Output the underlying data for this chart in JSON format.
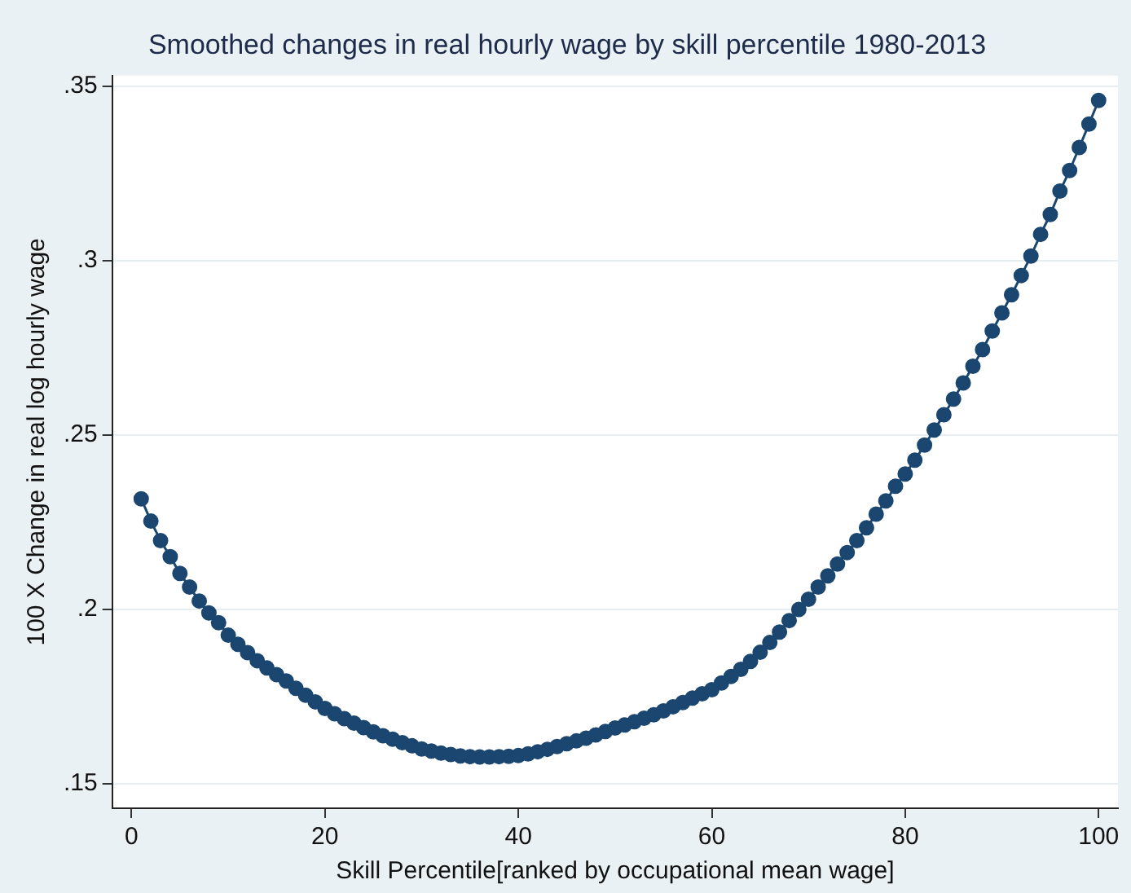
{
  "chart_data": {
    "type": "line",
    "title": "Smoothed changes in real hourly wage by skill percentile 1980-2013",
    "xlabel": "Skill Percentile[ranked by occupational mean wage]",
    "ylabel": "100 X Change in real log hourly wage",
    "x": [
      1,
      2,
      3,
      4,
      5,
      6,
      7,
      8,
      9,
      10,
      11,
      12,
      13,
      14,
      15,
      16,
      17,
      18,
      19,
      20,
      21,
      22,
      23,
      24,
      25,
      26,
      27,
      28,
      29,
      30,
      31,
      32,
      33,
      34,
      35,
      36,
      37,
      38,
      39,
      40,
      41,
      42,
      43,
      44,
      45,
      46,
      47,
      48,
      49,
      50,
      51,
      52,
      53,
      54,
      55,
      56,
      57,
      58,
      59,
      60,
      61,
      62,
      63,
      64,
      65,
      66,
      67,
      68,
      69,
      70,
      71,
      72,
      73,
      74,
      75,
      76,
      77,
      78,
      79,
      80,
      81,
      82,
      83,
      84,
      85,
      86,
      87,
      88,
      89,
      90,
      91,
      92,
      93,
      94,
      95,
      96,
      97,
      98,
      99,
      100
    ],
    "series": [
      {
        "color": "#1a4670",
        "values": [
          0.2317,
          0.2253,
          0.2197,
          0.2151,
          0.2103,
          0.2064,
          0.2024,
          0.199,
          0.1962,
          0.1926,
          0.19,
          0.1876,
          0.1853,
          0.1832,
          0.1813,
          0.1795,
          0.1774,
          0.1754,
          0.1735,
          0.1716,
          0.1701,
          0.1687,
          0.1674,
          0.1661,
          0.1649,
          0.1638,
          0.1628,
          0.1618,
          0.1609,
          0.16,
          0.1594,
          0.1588,
          0.1584,
          0.158,
          0.1578,
          0.1577,
          0.1577,
          0.1578,
          0.1579,
          0.1581,
          0.1586,
          0.1592,
          0.1599,
          0.1607,
          0.1615,
          0.1623,
          0.1631,
          0.164,
          0.165,
          0.166,
          0.1669,
          0.1678,
          0.1688,
          0.1698,
          0.1709,
          0.1721,
          0.1733,
          0.1746,
          0.1758,
          0.177,
          0.1789,
          0.1808,
          0.1828,
          0.1851,
          0.1877,
          0.1905,
          0.1935,
          0.1968,
          0.2,
          0.2029,
          0.2064,
          0.2096,
          0.213,
          0.2163,
          0.2197,
          0.2234,
          0.2273,
          0.2311,
          0.2353,
          0.2388,
          0.2428,
          0.2471,
          0.2514,
          0.2558,
          0.2603,
          0.2649,
          0.2697,
          0.2745,
          0.2798,
          0.285,
          0.2902,
          0.2957,
          0.3013,
          0.3075,
          0.3132,
          0.3199,
          0.3258,
          0.3324,
          0.3391,
          0.3459
        ]
      }
    ],
    "xlim": [
      -2,
      102
    ],
    "xticks": [
      0,
      20,
      40,
      60,
      80,
      100
    ],
    "ylim": [
      0.143,
      0.353
    ],
    "yticks": [
      {
        "value": 0.15,
        "label": ".15"
      },
      {
        "value": 0.2,
        "label": ".2"
      },
      {
        "value": 0.25,
        "label": ".25"
      },
      {
        "value": 0.3,
        "label": ".3"
      },
      {
        "value": 0.35,
        "label": ".35"
      }
    ],
    "grid": "y",
    "legend": false,
    "marker": "circle",
    "line_style": "solid"
  }
}
